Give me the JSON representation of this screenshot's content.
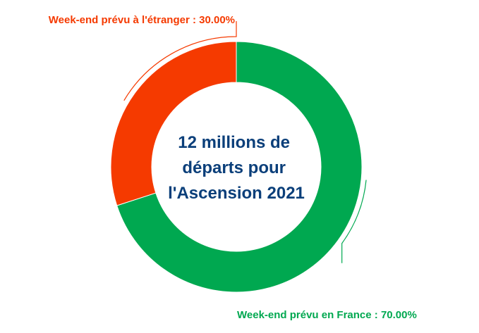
{
  "chart_data": {
    "type": "pie",
    "variant": "donut",
    "center_text": [
      "12 millions de",
      "départs pour",
      "l'Ascension 2021"
    ],
    "series": [
      {
        "name": "Week-end prévu en France",
        "value": 70.0,
        "color": "#00a850"
      },
      {
        "name": "Week-end prévu à l'étranger",
        "value": 30.0,
        "color": "#f53a00"
      }
    ],
    "labels": [
      "Week-end prévu en France : 70.00%",
      "Week-end prévu à l'étranger : 30.00%"
    ],
    "center_color": "#0b3f7a"
  }
}
